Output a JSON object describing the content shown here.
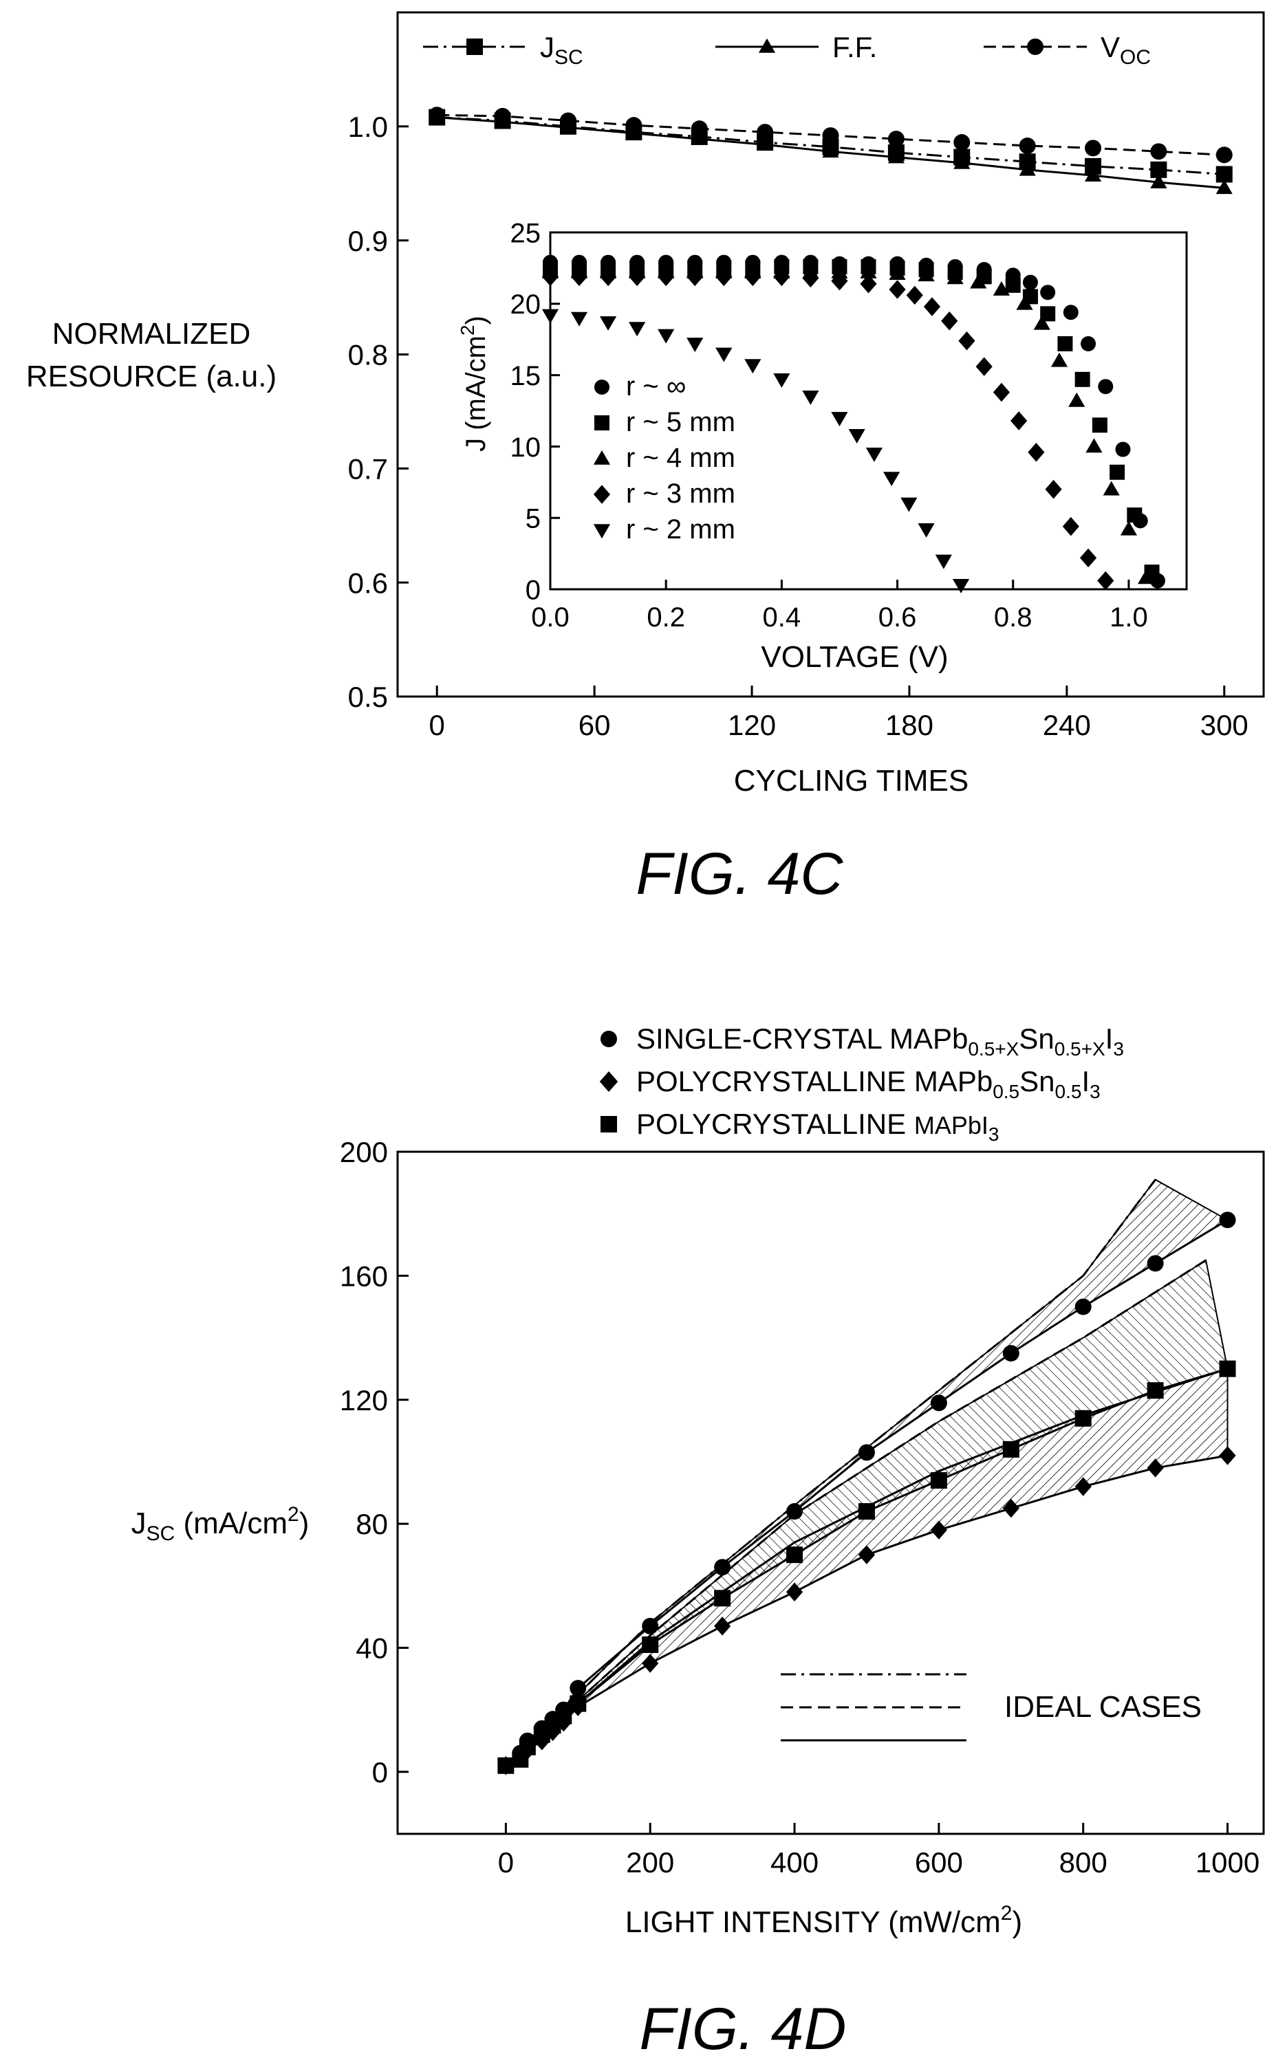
{
  "figures": [
    {
      "caption": "FIG. 4C"
    },
    {
      "caption": "FIG. 4D"
    }
  ],
  "chart_data": [
    {
      "id": "fig4c-main",
      "type": "line",
      "title": "",
      "xlabel": "CYCLING TIMES",
      "ylabel_lines": [
        "NORMALIZED",
        "RESOURCE (a.u.)"
      ],
      "xlim": [
        -15,
        315
      ],
      "ylim": [
        0.5,
        1.1
      ],
      "xticks": [
        0,
        60,
        120,
        180,
        240,
        300
      ],
      "yticks": [
        0.5,
        0.6,
        0.7,
        0.8,
        0.9,
        1.0
      ],
      "xtick_labels": [
        "0",
        "60",
        "120",
        "180",
        "240",
        "300"
      ],
      "ytick_labels": [
        "0.5",
        "0.6",
        "0.7",
        "0.8",
        "0.9",
        "1.0"
      ],
      "legend_position": "top",
      "x": [
        0,
        25,
        50,
        75,
        100,
        125,
        150,
        175,
        200,
        225,
        250,
        275,
        300
      ],
      "series": [
        {
          "name": "J",
          "subscript": "SC",
          "marker": "square",
          "line": "dashdot",
          "values": [
            1.008,
            1.005,
            1.0,
            0.995,
            0.991,
            0.986,
            0.982,
            0.977,
            0.973,
            0.969,
            0.965,
            0.962,
            0.958
          ]
        },
        {
          "name": "F.F.",
          "subscript": "",
          "marker": "triangle",
          "line": "solid",
          "values": [
            1.008,
            1.004,
            0.999,
            0.994,
            0.989,
            0.984,
            0.978,
            0.973,
            0.968,
            0.962,
            0.957,
            0.951,
            0.946
          ]
        },
        {
          "name": "V",
          "subscript": "OC",
          "marker": "circle",
          "line": "dashed",
          "values": [
            1.01,
            1.009,
            1.005,
            1.001,
            0.998,
            0.995,
            0.992,
            0.989,
            0.986,
            0.983,
            0.981,
            0.978,
            0.975
          ]
        }
      ]
    },
    {
      "id": "fig4c-inset",
      "type": "scatter",
      "title": "",
      "xlabel": "VOLTAGE (V)",
      "ylabel": "J (mA/cm",
      "ylabel_sup": "2",
      "ylabel_end": ")",
      "xlim": [
        0,
        1.1
      ],
      "ylim": [
        0,
        25
      ],
      "xticks": [
        0.0,
        0.2,
        0.4,
        0.6,
        0.8,
        1.0
      ],
      "yticks": [
        0,
        5,
        10,
        15,
        20,
        25
      ],
      "xtick_labels": [
        "0.0",
        "0.2",
        "0.4",
        "0.6",
        "0.8",
        "1.0"
      ],
      "ytick_labels": [
        "0",
        "5",
        "10",
        "15",
        "20",
        "25"
      ],
      "legend_position": "bottom-left",
      "series": [
        {
          "name": "r ~ ∞",
          "marker": "circle",
          "x": [
            0.0,
            0.05,
            0.1,
            0.15,
            0.2,
            0.25,
            0.3,
            0.35,
            0.4,
            0.45,
            0.5,
            0.55,
            0.6,
            0.65,
            0.7,
            0.75,
            0.8,
            0.83,
            0.86,
            0.9,
            0.93,
            0.96,
            0.99,
            1.02,
            1.05
          ],
          "y": [
            22.9,
            22.9,
            22.9,
            22.9,
            22.9,
            22.9,
            22.9,
            22.9,
            22.9,
            22.9,
            22.8,
            22.8,
            22.8,
            22.7,
            22.6,
            22.4,
            22.0,
            21.5,
            20.8,
            19.4,
            17.2,
            14.2,
            9.8,
            4.8,
            0.6
          ]
        },
        {
          "name": "r ~ 5 mm",
          "marker": "square",
          "x": [
            0.0,
            0.05,
            0.1,
            0.15,
            0.2,
            0.25,
            0.3,
            0.35,
            0.4,
            0.45,
            0.5,
            0.55,
            0.6,
            0.65,
            0.7,
            0.75,
            0.8,
            0.83,
            0.86,
            0.89,
            0.92,
            0.95,
            0.98,
            1.01,
            1.04
          ],
          "y": [
            22.5,
            22.5,
            22.5,
            22.5,
            22.5,
            22.5,
            22.5,
            22.5,
            22.6,
            22.6,
            22.6,
            22.6,
            22.5,
            22.4,
            22.2,
            21.9,
            21.3,
            20.5,
            19.3,
            17.2,
            14.7,
            11.5,
            8.2,
            5.2,
            1.2
          ]
        },
        {
          "name": "r ~ 4 mm",
          "marker": "triangle-up",
          "x": [
            0.0,
            0.05,
            0.1,
            0.15,
            0.2,
            0.25,
            0.3,
            0.35,
            0.4,
            0.45,
            0.5,
            0.55,
            0.6,
            0.65,
            0.7,
            0.74,
            0.78,
            0.82,
            0.85,
            0.88,
            0.91,
            0.94,
            0.97,
            1.0,
            1.03
          ],
          "y": [
            22.2,
            22.2,
            22.2,
            22.2,
            22.2,
            22.2,
            22.2,
            22.2,
            22.2,
            22.2,
            22.2,
            22.2,
            22.1,
            22.0,
            21.8,
            21.5,
            21.0,
            20.0,
            18.6,
            16.0,
            13.2,
            10.0,
            7.0,
            4.2,
            0.8
          ]
        },
        {
          "name": "r ~ 3 mm",
          "marker": "diamond",
          "x": [
            0.0,
            0.05,
            0.1,
            0.15,
            0.2,
            0.25,
            0.3,
            0.35,
            0.4,
            0.45,
            0.5,
            0.55,
            0.6,
            0.63,
            0.66,
            0.69,
            0.72,
            0.75,
            0.78,
            0.81,
            0.84,
            0.87,
            0.9,
            0.93,
            0.96
          ],
          "y": [
            21.9,
            21.9,
            21.9,
            21.9,
            21.9,
            21.9,
            21.9,
            21.9,
            21.9,
            21.8,
            21.6,
            21.4,
            21.0,
            20.6,
            19.8,
            18.8,
            17.4,
            15.6,
            13.8,
            11.8,
            9.6,
            7.0,
            4.4,
            2.2,
            0.6
          ]
        },
        {
          "name": "r ~ 2 mm",
          "marker": "triangle-down",
          "x": [
            0.0,
            0.05,
            0.1,
            0.15,
            0.2,
            0.25,
            0.3,
            0.35,
            0.4,
            0.45,
            0.5,
            0.53,
            0.56,
            0.59,
            0.62,
            0.65,
            0.68,
            0.71
          ],
          "y": [
            19.2,
            19.0,
            18.7,
            18.3,
            17.8,
            17.2,
            16.5,
            15.7,
            14.7,
            13.5,
            12.0,
            10.8,
            9.5,
            7.8,
            6.0,
            4.2,
            2.0,
            0.3
          ]
        }
      ]
    },
    {
      "id": "fig4d",
      "type": "line",
      "title": "",
      "xlabel": "LIGHT INTENSITY (mW/cm",
      "xlabel_sup": "2",
      "xlabel_end": ")",
      "ylabel": "J",
      "ylabel_sub": "SC",
      "ylabel_rest": " (mA/cm",
      "ylabel_sup": "2",
      "ylabel_end": ")",
      "xlim": [
        -150,
        1050
      ],
      "ylim": [
        -20,
        200
      ],
      "xticks": [
        0,
        200,
        400,
        600,
        800,
        1000
      ],
      "yticks": [
        0,
        40,
        80,
        120,
        160,
        200
      ],
      "xtick_labels": [
        "0",
        "200",
        "400",
        "600",
        "800",
        "1000"
      ],
      "ytick_labels": [
        "0",
        "40",
        "80",
        "120",
        "160",
        "200"
      ],
      "legend_position": "top",
      "legend": [
        {
          "marker": "circle",
          "text": "SINGLE-CRYSTAL MAPb",
          "sub1": "0.5+X",
          "mid": "Sn",
          "sub2": "0.5+X",
          "end": "I",
          "sub3": "3"
        },
        {
          "marker": "diamond",
          "text": "POLYCRYSTALLINE MAPb",
          "sub1": "0.5",
          "mid": "Sn",
          "sub2": "0.5",
          "end": "I",
          "sub3": "3"
        },
        {
          "marker": "square",
          "text": "POLYCRYSTALLINE ",
          "sub1": "",
          "mid": "MAPbI",
          "sub2": "3",
          "end": "",
          "sub3": ""
        }
      ],
      "ideal_cases_label": "IDEAL CASES",
      "series": [
        {
          "name": "SINGLE-CRYSTAL MAPb0.5+XSn0.5+XI3",
          "marker": "circle",
          "x": [
            0,
            20,
            30,
            50,
            65,
            80,
            100,
            200,
            300,
            400,
            500,
            600,
            700,
            800,
            900,
            1000
          ],
          "y": [
            2,
            6,
            10,
            14,
            17,
            20,
            27,
            47,
            66,
            84,
            103,
            119,
            135,
            150,
            164,
            178
          ]
        },
        {
          "name": "POLYCRYSTALLINE MAPbI3",
          "marker": "square",
          "x": [
            0,
            20,
            30,
            50,
            65,
            80,
            100,
            200,
            300,
            400,
            500,
            600,
            700,
            800,
            900,
            1000
          ],
          "y": [
            2,
            4,
            8,
            12,
            15,
            18,
            22,
            41,
            56,
            70,
            84,
            94,
            104,
            114,
            123,
            130
          ]
        },
        {
          "name": "POLYCRYSTALLINE MAPb0.5Sn0.5I3",
          "marker": "diamond",
          "x": [
            0,
            20,
            30,
            50,
            65,
            80,
            100,
            200,
            300,
            400,
            500,
            600,
            700,
            800,
            900,
            1000
          ],
          "y": [
            2,
            5,
            7,
            10,
            13,
            16,
            21,
            35,
            47,
            58,
            70,
            78,
            85,
            92,
            98,
            102
          ]
        }
      ],
      "ideal_lines": [
        {
          "style": "dashdot",
          "x": [
            0,
            200,
            400,
            600,
            800,
            900
          ],
          "y": [
            2,
            48,
            86,
            123,
            160,
            191
          ]
        },
        {
          "style": "dashed",
          "x": [
            0,
            200,
            400,
            600,
            800,
            970
          ],
          "y": [
            2,
            44,
            83,
            113,
            140,
            165
          ]
        },
        {
          "style": "solid",
          "x": [
            0,
            200,
            400,
            600,
            800,
            1000
          ],
          "y": [
            2,
            42,
            74,
            97,
            115,
            130
          ]
        }
      ]
    }
  ]
}
